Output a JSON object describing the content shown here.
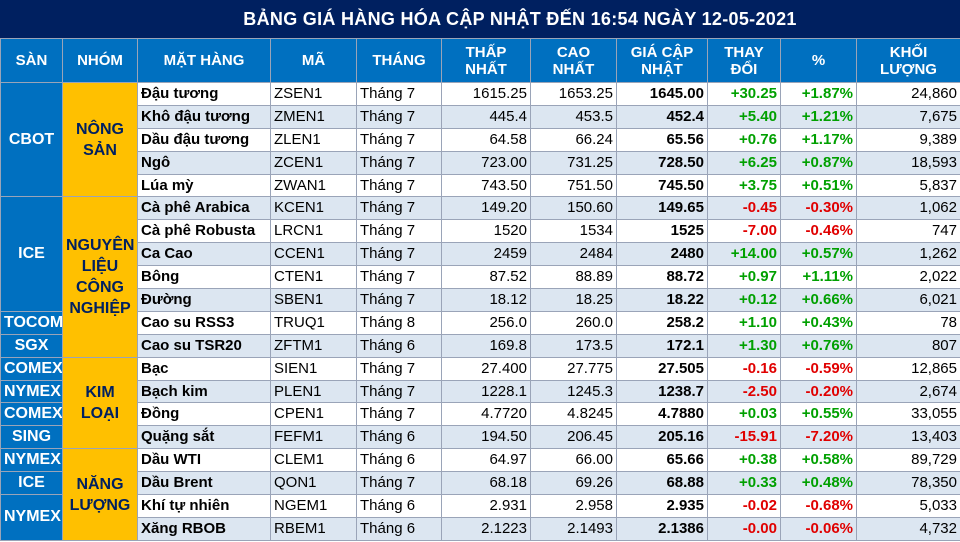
{
  "title": "BẢNG GIÁ HÀNG HÓA CẬP NHẬT ĐẾN    16:54 NGÀY 12-05-2021",
  "headers": {
    "san": "SÀN",
    "nhom": "NHÓM",
    "mat_hang": "MẶT HÀNG",
    "ma": "MÃ",
    "thang": "THÁNG",
    "thap_nhat": "THẤP NHẤT",
    "cao_nhat": "CAO NHẤT",
    "gia": "GIÁ CẬP NHẬT",
    "thay_doi": "THAY ĐỔI",
    "pct": "%",
    "khoi_luong": "KHỐI LƯỢNG"
  },
  "exchanges": {
    "cbot": "CBOT",
    "ice1": "ICE",
    "tocom": "TOCOM",
    "sgx": "SGX",
    "comex1": "COMEX",
    "nymex1": "NYMEX",
    "comex2": "COMEX",
    "sing": "SING",
    "nymex2": "NYMEX",
    "ice2": "ICE",
    "nymex3": "NYMEX"
  },
  "groups": {
    "nong_san": "NÔNG SẢN",
    "cong_nghiep": "NGUYÊN LIỆU CÔNG NGHIỆP",
    "kim_loai": "KIM LOẠI",
    "nang_luong": "NĂNG LƯỢNG"
  },
  "rows": [
    {
      "name": "Đậu tương",
      "code": "ZSEN1",
      "month": "Tháng 7",
      "low": "1615.25",
      "high": "1653.25",
      "last": "1645.00",
      "change": "+30.25",
      "pct": "+1.87%",
      "volume": "24,860",
      "dir": "up"
    },
    {
      "name": "Khô đậu tương",
      "code": "ZMEN1",
      "month": "Tháng 7",
      "low": "445.4",
      "high": "453.5",
      "last": "452.4",
      "change": "+5.40",
      "pct": "+1.21%",
      "volume": "7,675",
      "dir": "up"
    },
    {
      "name": "Dầu đậu tương",
      "code": "ZLEN1",
      "month": "Tháng 7",
      "low": "64.58",
      "high": "66.24",
      "last": "65.56",
      "change": "+0.76",
      "pct": "+1.17%",
      "volume": "9,389",
      "dir": "up"
    },
    {
      "name": "Ngô",
      "code": "ZCEN1",
      "month": "Tháng 7",
      "low": "723.00",
      "high": "731.25",
      "last": "728.50",
      "change": "+6.25",
      "pct": "+0.87%",
      "volume": "18,593",
      "dir": "up"
    },
    {
      "name": "Lúa mỳ",
      "code": "ZWAN1",
      "month": "Tháng 7",
      "low": "743.50",
      "high": "751.50",
      "last": "745.50",
      "change": "+3.75",
      "pct": "+0.51%",
      "volume": "5,837",
      "dir": "up"
    },
    {
      "name": "Cà phê Arabica",
      "code": "KCEN1",
      "month": "Tháng 7",
      "low": "149.20",
      "high": "150.60",
      "last": "149.65",
      "change": "-0.45",
      "pct": "-0.30%",
      "volume": "1,062",
      "dir": "down"
    },
    {
      "name": "Cà phê Robusta",
      "code": "LRCN1",
      "month": "Tháng 7",
      "low": "1520",
      "high": "1534",
      "last": "1525",
      "change": "-7.00",
      "pct": "-0.46%",
      "volume": "747",
      "dir": "down"
    },
    {
      "name": "Ca Cao",
      "code": "CCEN1",
      "month": "Tháng 7",
      "low": "2459",
      "high": "2484",
      "last": "2480",
      "change": "+14.00",
      "pct": "+0.57%",
      "volume": "1,262",
      "dir": "up"
    },
    {
      "name": "Bông",
      "code": "CTEN1",
      "month": "Tháng 7",
      "low": "87.52",
      "high": "88.89",
      "last": "88.72",
      "change": "+0.97",
      "pct": "+1.11%",
      "volume": "2,022",
      "dir": "up"
    },
    {
      "name": "Đường",
      "code": "SBEN1",
      "month": "Tháng 7",
      "low": "18.12",
      "high": "18.25",
      "last": "18.22",
      "change": "+0.12",
      "pct": "+0.66%",
      "volume": "6,021",
      "dir": "up"
    },
    {
      "name": "Cao su RSS3",
      "code": "TRUQ1",
      "month": "Tháng 8",
      "low": "256.0",
      "high": "260.0",
      "last": "258.2",
      "change": "+1.10",
      "pct": "+0.43%",
      "volume": "78",
      "dir": "up"
    },
    {
      "name": "Cao su TSR20",
      "code": "ZFTM1",
      "month": "Tháng 6",
      "low": "169.8",
      "high": "173.5",
      "last": "172.1",
      "change": "+1.30",
      "pct": "+0.76%",
      "volume": "807",
      "dir": "up"
    },
    {
      "name": "Bạc",
      "code": "SIEN1",
      "month": "Tháng 7",
      "low": "27.400",
      "high": "27.775",
      "last": "27.505",
      "change": "-0.16",
      "pct": "-0.59%",
      "volume": "12,865",
      "dir": "down"
    },
    {
      "name": "Bạch kim",
      "code": "PLEN1",
      "month": "Tháng 7",
      "low": "1228.1",
      "high": "1245.3",
      "last": "1238.7",
      "change": "-2.50",
      "pct": "-0.20%",
      "volume": "2,674",
      "dir": "down"
    },
    {
      "name": "Đồng",
      "code": "CPEN1",
      "month": "Tháng 7",
      "low": "4.7720",
      "high": "4.8245",
      "last": "4.7880",
      "change": "+0.03",
      "pct": "+0.55%",
      "volume": "33,055",
      "dir": "up"
    },
    {
      "name": "Quặng sắt",
      "code": "FEFM1",
      "month": "Tháng 6",
      "low": "194.50",
      "high": "206.45",
      "last": "205.16",
      "change": "-15.91",
      "pct": "-7.20%",
      "volume": "13,403",
      "dir": "down"
    },
    {
      "name": "Dầu WTI",
      "code": "CLEM1",
      "month": "Tháng 6",
      "low": "64.97",
      "high": "66.00",
      "last": "65.66",
      "change": "+0.38",
      "pct": "+0.58%",
      "volume": "89,729",
      "dir": "up"
    },
    {
      "name": "Dầu Brent",
      "code": "QON1",
      "month": "Tháng 7",
      "low": "68.18",
      "high": "69.26",
      "last": "68.88",
      "change": "+0.33",
      "pct": "+0.48%",
      "volume": "78,350",
      "dir": "up"
    },
    {
      "name": "Khí tự nhiên",
      "code": "NGEM1",
      "month": "Tháng 6",
      "low": "2.931",
      "high": "2.958",
      "last": "2.935",
      "change": "-0.02",
      "pct": "-0.68%",
      "volume": "5,033",
      "dir": "down"
    },
    {
      "name": "Xăng RBOB",
      "code": "RBEM1",
      "month": "Tháng 6",
      "low": "2.1223",
      "high": "2.1493",
      "last": "2.1386",
      "change": "-0.00",
      "pct": "-0.06%",
      "volume": "4,732",
      "dir": "down"
    }
  ]
}
